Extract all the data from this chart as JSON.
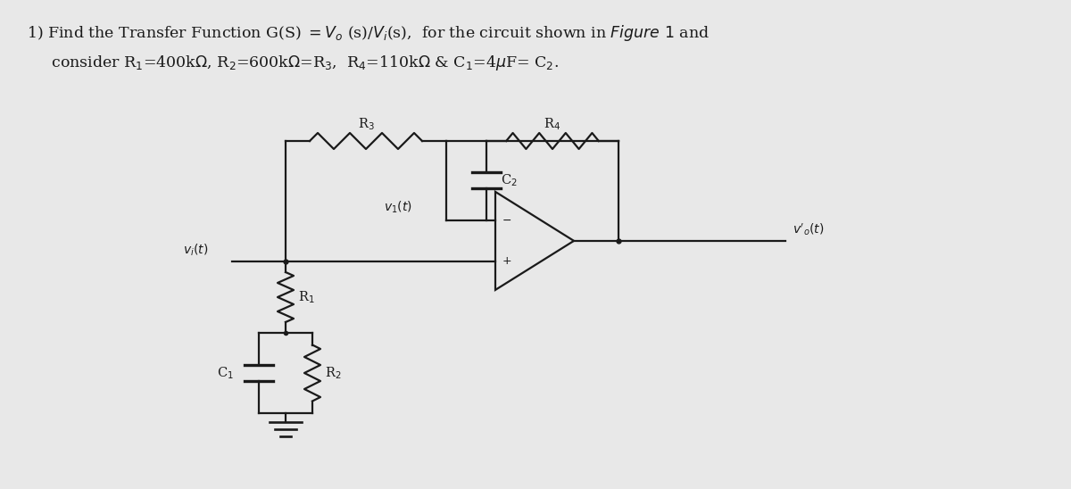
{
  "bg_color": "#e8e8e8",
  "text_color": "#1a1a1a",
  "line_color": "#1a1a1a",
  "fig_width": 12.0,
  "fig_height": 5.48
}
